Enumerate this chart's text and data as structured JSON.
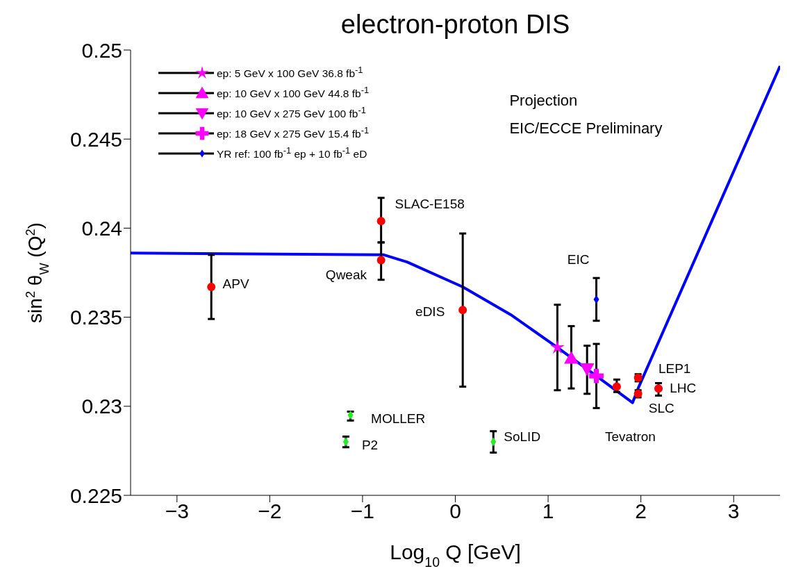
{
  "chart_data": {
    "type": "scatter",
    "title": "electron-proton DIS",
    "xlabel": "Log$_{10}$ Q [GeV]",
    "ylabel": "sin$^{2}$ θ$_{W}$ (Q$^{2}$)",
    "xlim": [
      -3.5,
      3.5
    ],
    "xticks": [
      -3,
      -2,
      -1,
      0,
      1,
      2,
      3
    ],
    "ylim": [
      0.225,
      0.25
    ],
    "yticks": [
      0.225,
      0.23,
      0.235,
      0.24,
      0.245,
      0.25
    ],
    "legend": "top left",
    "series": [
      {
        "type": "line",
        "color": "#0000ff",
        "marker": "none",
        "x": [
          -3.5,
          -0.77,
          -0.52,
          0.08,
          0.61,
          1.1,
          1.52,
          1.91,
          1.97,
          3.5
        ],
        "values": [
          0.2386,
          0.2385,
          0.2381,
          0.2367,
          0.2351,
          0.2333,
          0.2317,
          0.2302,
          0.231,
          0.2491
        ]
      },
      {
        "color": "#ff0000",
        "marker": "circle",
        "x": [
          -2.63,
          -0.8,
          -0.8,
          0.08,
          1.74,
          1.97,
          1.97,
          2.19
        ],
        "values": [
          0.2367,
          0.2404,
          0.2382,
          0.2354,
          0.2311,
          0.2316,
          0.2307,
          0.231
        ],
        "errors": [
          [
            0.2349,
            0.2385
          ],
          [
            0.2392,
            0.2417
          ],
          [
            0.2371,
            0.2392
          ],
          [
            0.2311,
            0.2397
          ],
          [
            0.2308,
            0.2315
          ],
          [
            0.2314,
            0.2318
          ],
          [
            0.2305,
            0.2309
          ],
          [
            0.2306,
            0.2313
          ]
        ]
      },
      {
        "color": "#22ee22",
        "marker": "diamond",
        "x": [
          -1.13,
          -1.18,
          0.41
        ],
        "values": [
          0.2295,
          0.228,
          0.228
        ],
        "errors": [
          [
            0.2292,
            0.2297
          ],
          [
            0.2277,
            0.2283
          ],
          [
            0.2274,
            0.2286
          ]
        ]
      },
      {
        "name": "ep: 5 GeV x 100 GeV 36.8 fb$^{-1}$",
        "color": "#ff00ff",
        "marker": "star",
        "x": [
          1.1
        ],
        "values": [
          0.2333
        ],
        "errors": [
          [
            0.2309,
            0.2357
          ]
        ]
      },
      {
        "name": "ep: 10 GeV x 100 GeV 44.8 fb$^{-1}$",
        "color": "#ff00ff",
        "marker": "triangle",
        "x": [
          1.25
        ],
        "values": [
          0.2327
        ],
        "errors": [
          [
            0.231,
            0.2345
          ]
        ]
      },
      {
        "name": "ep: 10 GeV x 275 GeV 100 fb$^{-1}$",
        "color": "#ff00ff",
        "marker": "triangle-down",
        "x": [
          1.42
        ],
        "values": [
          0.2321
        ],
        "errors": [
          [
            0.2307,
            0.2334
          ]
        ]
      },
      {
        "name": "ep: 18 GeV x 275 GeV 15.4 fb$^{-1}$",
        "color": "#ff00ff",
        "marker": "cross",
        "x": [
          1.52
        ],
        "values": [
          0.2317
        ],
        "errors": [
          [
            0.2299,
            0.2335
          ]
        ]
      },
      {
        "name": "YR ref: 100 fb$^{-1}$ ep + 10 fb$^{-1}$ eD",
        "color": "#0000ff",
        "marker": "diamond",
        "x": [
          1.52
        ],
        "values": [
          0.236
        ],
        "errors": [
          [
            0.2348,
            0.2372
          ]
        ]
      }
    ],
    "annotations": [
      "Projection",
      "EIC/ECCE Preliminary",
      "APV",
      "SLAC-E158",
      "Qweak",
      "eDIS",
      "EIC",
      "LEP1",
      "LHC",
      "SLC",
      "Tevatron",
      "MOLLER",
      "P2",
      "SoLID"
    ]
  }
}
